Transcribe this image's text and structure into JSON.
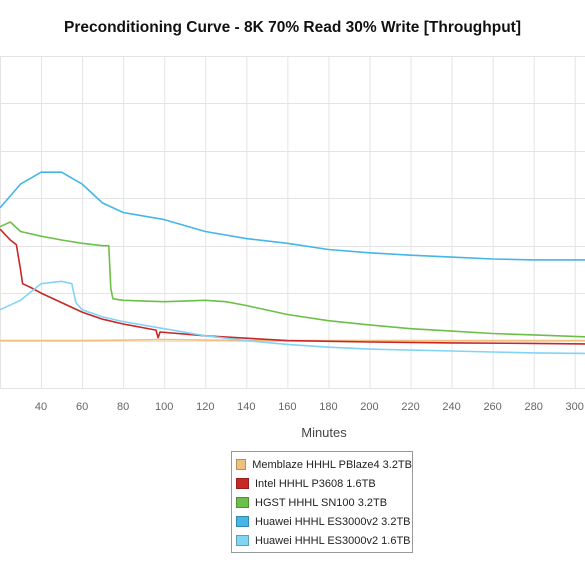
{
  "chart_data": {
    "type": "line",
    "title": "Preconditioning Curve - 8K 70% Read 30% Write [Throughput]",
    "xlabel": "Minutes",
    "ylabel": "",
    "xlim": [
      20,
      305
    ],
    "ylim": [
      0,
      7
    ],
    "x_ticks": [
      40,
      60,
      80,
      100,
      120,
      140,
      160,
      180,
      200,
      220,
      240,
      260,
      280,
      300
    ],
    "grid": true,
    "legend_position": "bottom-center",
    "series": [
      {
        "name": "Memblaze HHHL PBlaze4 3.2TB",
        "color": "#f0c07e",
        "points": [
          [
            20,
            1.0
          ],
          [
            60,
            1.0
          ],
          [
            100,
            1.02
          ],
          [
            140,
            1.0
          ],
          [
            180,
            1.0
          ],
          [
            220,
            1.0
          ],
          [
            260,
            1.0
          ],
          [
            305,
            1.0
          ]
        ]
      },
      {
        "name": "Intel HHHL P3608 1.6TB",
        "color": "#c82726",
        "points": [
          [
            20,
            3.35
          ],
          [
            25,
            3.12
          ],
          [
            28,
            3.02
          ],
          [
            30,
            2.5
          ],
          [
            31,
            2.2
          ],
          [
            35,
            2.12
          ],
          [
            40,
            2.0
          ],
          [
            50,
            1.8
          ],
          [
            60,
            1.6
          ],
          [
            70,
            1.45
          ],
          [
            80,
            1.35
          ],
          [
            96,
            1.22
          ],
          [
            97,
            1.06
          ],
          [
            98,
            1.18
          ],
          [
            120,
            1.1
          ],
          [
            140,
            1.05
          ],
          [
            160,
            1.0
          ],
          [
            200,
            0.97
          ],
          [
            240,
            0.95
          ],
          [
            280,
            0.94
          ],
          [
            305,
            0.93
          ]
        ]
      },
      {
        "name": "HGST HHHL SN100 3.2TB",
        "color": "#6cc048",
        "points": [
          [
            20,
            3.4
          ],
          [
            25,
            3.5
          ],
          [
            30,
            3.3
          ],
          [
            40,
            3.2
          ],
          [
            50,
            3.12
          ],
          [
            60,
            3.05
          ],
          [
            70,
            3.0
          ],
          [
            73,
            3.0
          ],
          [
            74,
            2.1
          ],
          [
            75,
            1.88
          ],
          [
            80,
            1.85
          ],
          [
            100,
            1.82
          ],
          [
            120,
            1.85
          ],
          [
            130,
            1.82
          ],
          [
            140,
            1.74
          ],
          [
            160,
            1.55
          ],
          [
            180,
            1.42
          ],
          [
            200,
            1.33
          ],
          [
            220,
            1.25
          ],
          [
            240,
            1.2
          ],
          [
            260,
            1.15
          ],
          [
            280,
            1.12
          ],
          [
            305,
            1.08
          ]
        ]
      },
      {
        "name": "Huawei HHHL ES3000v2 3.2TB",
        "color": "#45b6e6",
        "points": [
          [
            20,
            3.8
          ],
          [
            30,
            4.3
          ],
          [
            40,
            4.55
          ],
          [
            50,
            4.55
          ],
          [
            60,
            4.3
          ],
          [
            70,
            3.9
          ],
          [
            80,
            3.7
          ],
          [
            100,
            3.55
          ],
          [
            120,
            3.3
          ],
          [
            140,
            3.15
          ],
          [
            160,
            3.05
          ],
          [
            180,
            2.92
          ],
          [
            200,
            2.85
          ],
          [
            220,
            2.8
          ],
          [
            240,
            2.76
          ],
          [
            260,
            2.72
          ],
          [
            280,
            2.7
          ],
          [
            305,
            2.7
          ]
        ]
      },
      {
        "name": "Huawei HHHL ES3000v2 1.6TB",
        "color": "#82d4f5",
        "points": [
          [
            20,
            1.65
          ],
          [
            30,
            1.85
          ],
          [
            40,
            2.2
          ],
          [
            50,
            2.25
          ],
          [
            55,
            2.2
          ],
          [
            57,
            1.8
          ],
          [
            60,
            1.65
          ],
          [
            70,
            1.5
          ],
          [
            80,
            1.4
          ],
          [
            100,
            1.25
          ],
          [
            120,
            1.1
          ],
          [
            140,
            1.0
          ],
          [
            160,
            0.92
          ],
          [
            180,
            0.86
          ],
          [
            200,
            0.82
          ],
          [
            220,
            0.8
          ],
          [
            240,
            0.78
          ],
          [
            260,
            0.76
          ],
          [
            280,
            0.74
          ],
          [
            305,
            0.73
          ]
        ]
      }
    ]
  }
}
